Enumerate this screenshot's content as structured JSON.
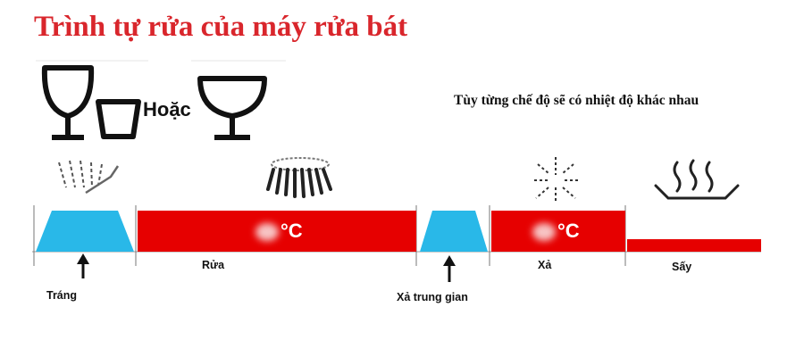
{
  "title": "Trình tự rửa của máy rửa bát",
  "or_label": "Hoặc",
  "note": "Tùy từng chế độ sẽ có nhiệt độ khác nhau",
  "colors": {
    "title": "#d9262c",
    "wash_bar": "#e60000",
    "rinse_trapezoid": "#29b8e8"
  },
  "icons": [
    "wine-glass-icon",
    "cup-icon",
    "wide-glass-icon",
    "spray-icon",
    "rotating-spray-arm-icon",
    "heat-burst-icon",
    "steam-tray-icon",
    "arrow-up-icon"
  ],
  "stages": {
    "trang": "Tráng",
    "rua": "Rửa",
    "xa_trung_gian": "Xả trung gian",
    "xa": "Xả",
    "say": "Sấy"
  },
  "temp_unit": "°C"
}
